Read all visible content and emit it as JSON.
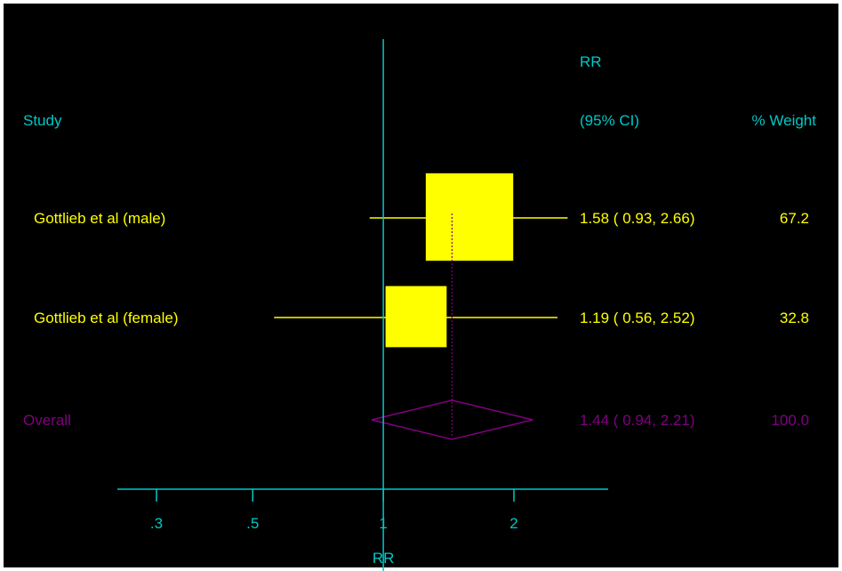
{
  "colors": {
    "background": "#000000",
    "border": "#ffffff",
    "axis": "#00c8c8",
    "header_text": "#00c8c8",
    "study": "#ffff00",
    "overall": "#800080"
  },
  "headers": {
    "rr": "RR",
    "study": "Study",
    "ci": "(95% CI)",
    "weight": "% Weight"
  },
  "chart_data": {
    "type": "forest",
    "xlabel": "RR",
    "x_scale": "log",
    "xlim": [
      0.2,
      2.5
    ],
    "reference_line": 1,
    "xticks": [
      {
        "value": 0.3,
        "label": ".3"
      },
      {
        "value": 0.5,
        "label": ".5"
      },
      {
        "value": 1,
        "label": "1"
      },
      {
        "value": 2,
        "label": "2"
      }
    ],
    "studies": [
      {
        "name": "Gottlieb et al (male)",
        "rr": 1.58,
        "lower": 0.93,
        "upper": 2.66,
        "rr_text": "1.58 ( 0.93, 2.66)",
        "weight": "67.2",
        "weight_value": 67.2,
        "ci_extends_beyond_axis": true
      },
      {
        "name": "Gottlieb et al (female)",
        "rr": 1.19,
        "lower": 0.56,
        "upper": 2.52,
        "rr_text": "1.19 ( 0.56, 2.52)",
        "weight": "32.8",
        "weight_value": 32.8,
        "ci_extends_beyond_axis": true
      }
    ],
    "overall": {
      "name": "Overall",
      "rr": 1.44,
      "lower": 0.94,
      "upper": 2.21,
      "rr_text": "1.44 ( 0.94, 2.21)",
      "weight": "100.0"
    }
  }
}
